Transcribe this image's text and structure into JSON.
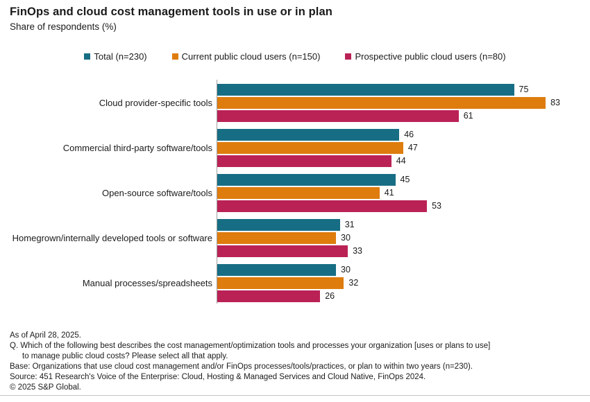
{
  "title": "FinOps and cloud cost management tools in use or in plan",
  "subtitle": "Share of respondents (%)",
  "colors": {
    "total": "#176E84",
    "current_users": "#DE7C0E",
    "prospective_users": "#BA2256",
    "axis_line": "#A0A0A0",
    "bottom_rule": "#C4C4C4",
    "text": "#1A1A1A"
  },
  "legend": [
    {
      "label": "Total (n=230)",
      "color": "#176E84"
    },
    {
      "label": "Current public cloud users (n=150)",
      "color": "#DE7C0E"
    },
    {
      "label": "Prospective public cloud users (n=80)",
      "color": "#BA2256"
    }
  ],
  "chart_data": {
    "type": "bar",
    "orientation": "horizontal",
    "title": "FinOps and cloud cost management tools in use or in plan",
    "xlabel": "Share of respondents (%)",
    "xlim": [
      0,
      93
    ],
    "grid": false,
    "legend_position": "top-center",
    "value_labels": true,
    "categories": [
      "Cloud provider-specific tools",
      "Commercial third-party software/tools",
      "Open-source software/tools",
      "Homegrown/internally developed tools or software",
      "Manual processes/spreadsheets"
    ],
    "series": [
      {
        "name": "Total (n=230)",
        "color": "#176E84",
        "values": [
          75,
          46,
          45,
          31,
          30
        ]
      },
      {
        "name": "Current public cloud users (n=150)",
        "color": "#DE7C0E",
        "values": [
          83,
          47,
          41,
          30,
          32
        ]
      },
      {
        "name": "Prospective public cloud users (n=80)",
        "color": "#BA2256",
        "values": [
          61,
          44,
          53,
          33,
          26
        ]
      }
    ]
  },
  "footer": {
    "lines": [
      {
        "text": "As of April 28, 2025.",
        "indent": false
      },
      {
        "text": "Q. Which of the following best describes the cost management/optimization tools and processes your organization [uses or plans to use]",
        "indent": false
      },
      {
        "text": "to manage public cloud costs? Please select all that apply.",
        "indent": true
      },
      {
        "text": "Base: Organizations that use cloud cost management and/or FinOps processes/tools/practices, or plan to within two years (n=230).",
        "indent": false
      },
      {
        "text": "Source: 451 Research's Voice of the Enterprise: Cloud, Hosting & Managed Services and Cloud Native, FinOps 2024.",
        "indent": false
      },
      {
        "text": "© 2025 S&P Global.",
        "indent": false
      }
    ]
  }
}
